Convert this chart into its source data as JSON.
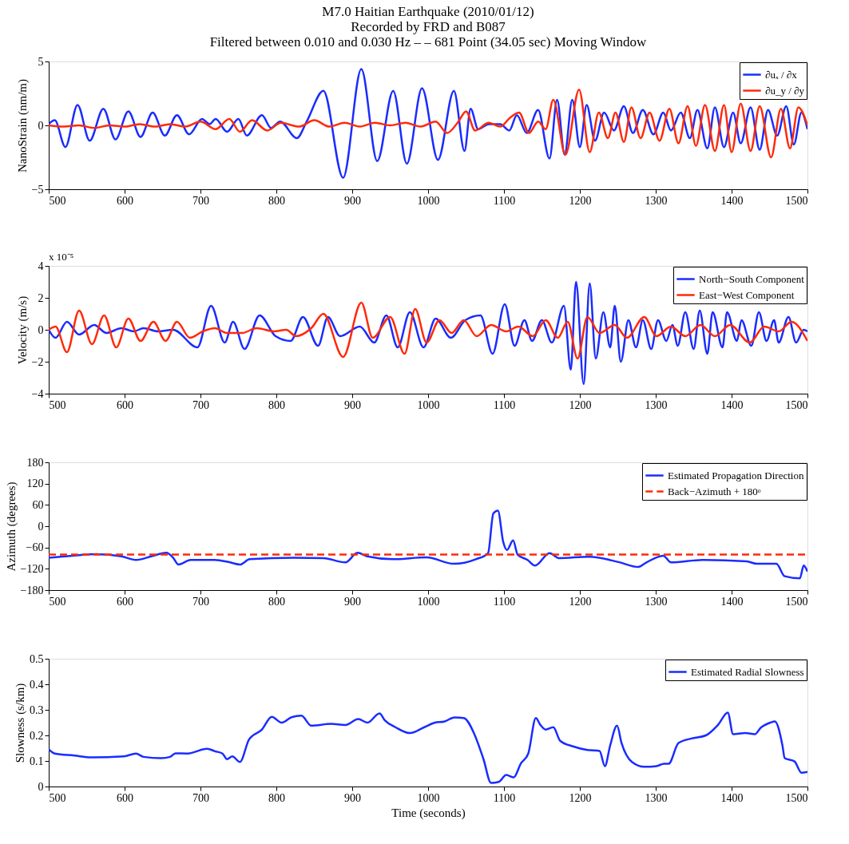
{
  "chart_data": [
    {
      "type": "line",
      "title": "M7.0 Haitian Earthquake (2010/01/12)",
      "subtitle": "Recorded by FRD and B087\nFiltered between 0.010 and 0.030 Hz  – –  681 Point (34.05 sec) Moving Window",
      "ylabel": "NanoStrain (nm/m)",
      "xlim": [
        500,
        1500
      ],
      "xticks": [
        500,
        600,
        700,
        800,
        900,
        1000,
        1100,
        1200,
        1300,
        1400,
        1500
      ],
      "ylim": [
        -5,
        5
      ],
      "yticks": [
        -5,
        0,
        5
      ],
      "legend": "top right",
      "series": [
        {
          "name": "∂uₓ / ∂x",
          "color": "#1a2cff",
          "x": [
            500,
            508,
            522,
            538,
            554,
            572,
            588,
            605,
            621,
            637,
            653,
            669,
            685,
            702,
            712,
            720,
            735,
            750,
            761,
            781,
            793,
            805,
            827,
            840,
            862,
            888,
            912,
            933,
            954,
            972,
            992,
            1013,
            1034,
            1048,
            1056,
            1066,
            1080,
            1095,
            1107,
            1117,
            1130,
            1145,
            1160,
            1170,
            1180,
            1190,
            1200,
            1209,
            1220,
            1232,
            1245,
            1258,
            1270,
            1283,
            1297,
            1310,
            1320,
            1333,
            1345,
            1355,
            1368,
            1378,
            1390,
            1402,
            1412,
            1425,
            1437,
            1448,
            1460,
            1472,
            1482,
            1492,
            1500
          ],
          "values": [
            0.1,
            0.4,
            -1.7,
            1.6,
            -1.2,
            1.3,
            -1.1,
            1.1,
            -0.9,
            1.0,
            -0.8,
            0.8,
            -0.7,
            0.5,
            0.1,
            0.5,
            -0.5,
            0.5,
            -0.8,
            0.8,
            -0.2,
            0.3,
            -1.0,
            0.3,
            2.7,
            -4.1,
            4.4,
            -2.8,
            2.7,
            -3.0,
            2.9,
            -2.7,
            2.7,
            -2.0,
            1.3,
            -0.3,
            0.1,
            0.1,
            -0.4,
            0.8,
            -0.6,
            1.2,
            -2.6,
            2.0,
            -2.3,
            2.0,
            -1.7,
            1.6,
            -1.2,
            1.0,
            -0.4,
            1.5,
            -0.6,
            1.2,
            -0.7,
            1.0,
            -0.4,
            1.0,
            -1.0,
            1.2,
            -1.8,
            1.4,
            -1.7,
            1.0,
            -1.4,
            1.4,
            -1.9,
            1.2,
            -0.8,
            1.5,
            -1.5,
            1.0,
            -0.3
          ]
        },
        {
          "name": "∂u_y / ∂y",
          "color": "#ff2a0a",
          "x": [
            500,
            520,
            540,
            560,
            580,
            600,
            620,
            640,
            660,
            680,
            700,
            720,
            738,
            752,
            768,
            788,
            806,
            830,
            850,
            870,
            890,
            910,
            930,
            950,
            970,
            990,
            1010,
            1025,
            1040,
            1050,
            1062,
            1080,
            1095,
            1108,
            1120,
            1133,
            1145,
            1155,
            1165,
            1181,
            1199,
            1213,
            1225,
            1237,
            1247,
            1258,
            1268,
            1280,
            1292,
            1305,
            1318,
            1330,
            1342,
            1353,
            1365,
            1378,
            1390,
            1400,
            1412,
            1425,
            1437,
            1452,
            1465,
            1477,
            1488,
            1500
          ],
          "values": [
            0.0,
            -0.1,
            0.0,
            -0.2,
            0.0,
            -0.1,
            0.1,
            -0.1,
            0.1,
            -0.1,
            0.3,
            -0.3,
            0.5,
            -0.5,
            0.4,
            -0.4,
            0.2,
            -0.1,
            0.4,
            -0.1,
            0.2,
            -0.1,
            0.2,
            0.0,
            0.2,
            -0.1,
            0.3,
            -0.6,
            0.3,
            1.1,
            -0.4,
            0.2,
            -0.1,
            0.6,
            1.0,
            -0.6,
            0.3,
            -0.3,
            2.0,
            -2.3,
            2.8,
            -2.1,
            1.0,
            -1.0,
            1.0,
            -1.3,
            1.4,
            -1.0,
            1.0,
            -1.2,
            1.3,
            -1.4,
            1.5,
            -1.6,
            1.6,
            -2.0,
            1.6,
            -2.1,
            1.7,
            -2.0,
            1.5,
            -2.5,
            1.3,
            -1.8,
            1.4,
            0.0
          ]
        }
      ]
    },
    {
      "type": "line",
      "ylabel": "Velocity (m/s)",
      "annotations": [
        "x 10⁻⁵"
      ],
      "xlim": [
        500,
        1500
      ],
      "xticks": [
        500,
        600,
        700,
        800,
        900,
        1000,
        1100,
        1200,
        1300,
        1400,
        1500
      ],
      "ylim": [
        -4,
        4
      ],
      "yticks": [
        -4,
        -2,
        0,
        2,
        4
      ],
      "legend": "top right",
      "series": [
        {
          "name": "North−South Component",
          "color": "#1a2cff",
          "x": [
            500,
            509,
            524,
            540,
            560,
            576,
            596,
            612,
            625,
            644,
            664,
            696,
            714,
            732,
            743,
            758,
            778,
            799,
            819,
            835,
            855,
            868,
            884,
            910,
            929,
            945,
            960,
            976,
            994,
            1010,
            1030,
            1049,
            1069,
            1085,
            1101,
            1114,
            1127,
            1137,
            1150,
            1163,
            1179,
            1188,
            1195,
            1205,
            1213,
            1221,
            1231,
            1240,
            1246,
            1254,
            1264,
            1274,
            1283,
            1294,
            1303,
            1314,
            1322,
            1329,
            1339,
            1350,
            1358,
            1368,
            1375,
            1388,
            1394,
            1407,
            1413,
            1426,
            1436,
            1446,
            1456,
            1462,
            1475,
            1485,
            1495,
            1500
          ],
          "values": [
            0,
            -0.5,
            0.5,
            -0.3,
            0.3,
            -0.2,
            0.1,
            -0.1,
            0.1,
            -0.1,
            0,
            -1.1,
            1.5,
            -0.8,
            0.5,
            -1.2,
            0.9,
            -0.4,
            -0.7,
            0.8,
            -1.0,
            0.8,
            -0.4,
            0.2,
            -0.8,
            0.9,
            -1.1,
            1.1,
            -1.1,
            0.7,
            -0.5,
            0.6,
            0.9,
            -1.5,
            1.6,
            -1.0,
            0.6,
            -0.7,
            0.6,
            -0.8,
            1.5,
            -2.5,
            3.0,
            -3.4,
            2.9,
            -1.8,
            1.1,
            -1.1,
            1.5,
            -2.0,
            0.6,
            -1.1,
            0.6,
            -1.2,
            0.6,
            -0.7,
            0.3,
            -1.0,
            1.1,
            -1.2,
            1.2,
            -1.5,
            1.1,
            -1.1,
            1.1,
            -0.7,
            0.6,
            -1.0,
            1.1,
            -0.7,
            0.6,
            -0.8,
            0.8,
            -0.8,
            0,
            -0.1
          ]
        },
        {
          "name": "East−West Component",
          "color": "#ff2a0a",
          "x": [
            500,
            509,
            524,
            540,
            557,
            573,
            589,
            605,
            621,
            638,
            654,
            669,
            686,
            703,
            719,
            735,
            755,
            774,
            797,
            813,
            826,
            846,
            862,
            888,
            912,
            927,
            950,
            969,
            983,
            998,
            1015,
            1031,
            1047,
            1064,
            1083,
            1103,
            1119,
            1138,
            1155,
            1171,
            1184,
            1197,
            1210,
            1226,
            1246,
            1262,
            1285,
            1301,
            1320,
            1339,
            1359,
            1378,
            1398,
            1424,
            1443,
            1462,
            1479,
            1500
          ],
          "values": [
            0,
            0.2,
            -1.4,
            1.2,
            -0.9,
            0.9,
            -1.1,
            0.7,
            -0.7,
            0.5,
            -0.7,
            0.5,
            -0.5,
            -0.1,
            0.1,
            -0.2,
            -0.2,
            0.1,
            -0.1,
            0,
            -0.4,
            0.1,
            1.0,
            -1.7,
            1.7,
            -0.5,
            0.8,
            -1.5,
            1.3,
            -0.8,
            0.6,
            -0.2,
            0.6,
            -0.4,
            0.3,
            -0.1,
            0.2,
            -0.4,
            0.6,
            -0.5,
            0.5,
            -1.8,
            0.8,
            -0.2,
            0.3,
            -0.5,
            0.8,
            -0.4,
            0.2,
            -0.4,
            0.3,
            -0.4,
            0.3,
            -0.8,
            0.2,
            -0.1,
            0.5,
            -0.7
          ]
        }
      ]
    },
    {
      "type": "line",
      "ylabel": "Azimuth (degrees)",
      "xlim": [
        500,
        1500
      ],
      "xticks": [
        500,
        600,
        700,
        800,
        900,
        1000,
        1100,
        1200,
        1300,
        1400,
        1500
      ],
      "ylim": [
        -180,
        180
      ],
      "yticks": [
        -180,
        -120,
        -60,
        0,
        60,
        120,
        180
      ],
      "legend": "top right",
      "series": [
        {
          "name": "Estimated Propagation Direction",
          "color": "#1a2cff",
          "line_style": "solid",
          "x": [
            500,
            531,
            563,
            596,
            615,
            635,
            655,
            664,
            671,
            687,
            719,
            739,
            752,
            765,
            823,
            862,
            891,
            907,
            920,
            953,
            998,
            1034,
            1063,
            1079,
            1086,
            1092,
            1099,
            1104,
            1112,
            1118,
            1131,
            1141,
            1160,
            1173,
            1212,
            1251,
            1277,
            1287,
            1310,
            1320,
            1362,
            1420,
            1433,
            1459,
            1470,
            1490,
            1495,
            1500
          ],
          "values": [
            -89,
            -83,
            -79,
            -85,
            -95,
            -85,
            -75,
            -89,
            -108,
            -95,
            -95,
            -102,
            -108,
            -93,
            -89,
            -90,
            -102,
            -75,
            -85,
            -93,
            -88,
            -106,
            -93,
            -76,
            36,
            44,
            -44,
            -67,
            -40,
            -80,
            -95,
            -111,
            -76,
            -90,
            -86,
            -101,
            -115,
            -103,
            -83,
            -102,
            -95,
            -99,
            -106,
            -106,
            -141,
            -147,
            -111,
            -128
          ]
        },
        {
          "name": "Back−Azimuth + 180ᵒ",
          "color": "#ff2a0a",
          "line_style": "dashed",
          "x": [
            500,
            1500
          ],
          "values": [
            -80,
            -80
          ]
        }
      ]
    },
    {
      "type": "line",
      "ylabel": "Slowness (s/km)",
      "xlabel": "Time (seconds)",
      "xlim": [
        500,
        1500
      ],
      "xticks": [
        500,
        600,
        700,
        800,
        900,
        1000,
        1100,
        1200,
        1300,
        1400,
        1500
      ],
      "ylim": [
        0,
        0.5
      ],
      "yticks": [
        0,
        0.1,
        0.2,
        0.3,
        0.4,
        0.5
      ],
      "legend": "top right",
      "series": [
        {
          "name": "Estimated Radial Slowness",
          "color": "#1a2cff",
          "x": [
            500,
            508,
            534,
            556,
            599,
            615,
            625,
            648,
            660,
            667,
            683,
            709,
            719,
            729,
            735,
            742,
            752,
            764,
            781,
            794,
            807,
            820,
            833,
            846,
            872,
            891,
            908,
            920,
            936,
            943,
            957,
            976,
            995,
            1009,
            1021,
            1035,
            1047,
            1061,
            1073,
            1083,
            1093,
            1103,
            1113,
            1122,
            1132,
            1142,
            1148,
            1155,
            1165,
            1174,
            1191,
            1210,
            1226,
            1233,
            1240,
            1249,
            1255,
            1269,
            1285,
            1301,
            1311,
            1317,
            1330,
            1347,
            1366,
            1382,
            1395,
            1402,
            1418,
            1431,
            1438,
            1451,
            1457,
            1467,
            1470,
            1483,
            1492,
            1500
          ],
          "values": [
            0.146,
            0.129,
            0.121,
            0.114,
            0.118,
            0.129,
            0.116,
            0.111,
            0.116,
            0.13,
            0.129,
            0.148,
            0.138,
            0.129,
            0.107,
            0.118,
            0.096,
            0.184,
            0.223,
            0.273,
            0.25,
            0.271,
            0.277,
            0.238,
            0.245,
            0.241,
            0.264,
            0.25,
            0.286,
            0.259,
            0.232,
            0.209,
            0.232,
            0.25,
            0.254,
            0.27,
            0.268,
            0.205,
            0.107,
            0.014,
            0.018,
            0.045,
            0.036,
            0.089,
            0.129,
            0.268,
            0.241,
            0.223,
            0.232,
            0.179,
            0.157,
            0.143,
            0.139,
            0.08,
            0.161,
            0.238,
            0.17,
            0.095,
            0.077,
            0.08,
            0.089,
            0.089,
            0.17,
            0.188,
            0.2,
            0.241,
            0.289,
            0.205,
            0.209,
            0.205,
            0.229,
            0.25,
            0.255,
            0.161,
            0.111,
            0.098,
            0.054,
            0.057
          ]
        }
      ]
    }
  ]
}
